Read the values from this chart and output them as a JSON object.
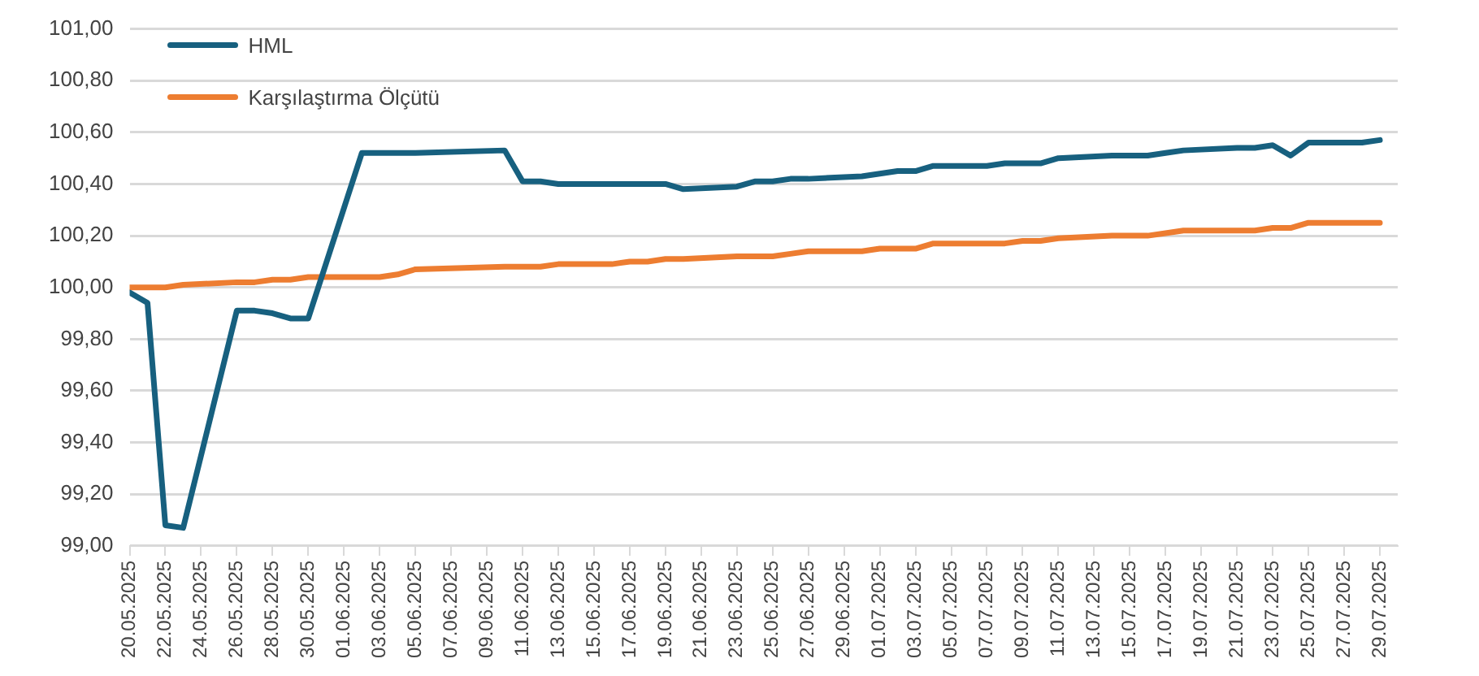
{
  "chart_data": {
    "type": "line",
    "x": [
      "2025-05-20",
      "2025-05-21",
      "2025-05-22",
      "2025-05-23",
      "2025-05-26",
      "2025-05-27",
      "2025-05-28",
      "2025-05-29",
      "2025-05-30",
      "2025-06-02",
      "2025-06-03",
      "2025-06-04",
      "2025-06-05",
      "2025-06-10",
      "2025-06-11",
      "2025-06-12",
      "2025-06-13",
      "2025-06-16",
      "2025-06-17",
      "2025-06-18",
      "2025-06-19",
      "2025-06-20",
      "2025-06-23",
      "2025-06-24",
      "2025-06-25",
      "2025-06-26",
      "2025-06-27",
      "2025-06-30",
      "2025-07-01",
      "2025-07-02",
      "2025-07-03",
      "2025-07-04",
      "2025-07-07",
      "2025-07-08",
      "2025-07-09",
      "2025-07-10",
      "2025-07-11",
      "2025-07-14",
      "2025-07-16",
      "2025-07-17",
      "2025-07-18",
      "2025-07-21",
      "2025-07-22",
      "2025-07-23",
      "2025-07-24",
      "2025-07-25",
      "2025-07-28",
      "2025-07-29"
    ],
    "series": [
      {
        "name": "HML",
        "color": "#17607f",
        "values": [
          99.98,
          99.94,
          99.08,
          99.07,
          99.91,
          99.91,
          99.9,
          99.88,
          99.88,
          100.52,
          100.52,
          100.52,
          100.52,
          100.53,
          100.41,
          100.41,
          100.4,
          100.4,
          100.4,
          100.4,
          100.4,
          100.38,
          100.39,
          100.41,
          100.41,
          100.42,
          100.42,
          100.43,
          100.44,
          100.45,
          100.45,
          100.47,
          100.47,
          100.48,
          100.48,
          100.48,
          100.5,
          100.51,
          100.51,
          100.52,
          100.53,
          100.54,
          100.54,
          100.55,
          100.51,
          100.56,
          100.56,
          100.57
        ]
      },
      {
        "name": "Karşılaştırma Ölçütü",
        "color": "#ed7d31",
        "values": [
          100.0,
          100.0,
          100.0,
          100.01,
          100.02,
          100.02,
          100.03,
          100.03,
          100.04,
          100.04,
          100.04,
          100.05,
          100.07,
          100.08,
          100.08,
          100.08,
          100.09,
          100.09,
          100.1,
          100.1,
          100.11,
          100.11,
          100.12,
          100.12,
          100.12,
          100.13,
          100.14,
          100.14,
          100.15,
          100.15,
          100.15,
          100.17,
          100.17,
          100.17,
          100.18,
          100.18,
          100.19,
          100.2,
          100.2,
          100.21,
          100.22,
          100.22,
          100.22,
          100.23,
          100.23,
          100.25,
          100.25,
          100.25
        ]
      }
    ],
    "xlim": [
      "2025-05-20",
      "2025-07-30"
    ],
    "xticks": [
      {
        "value": "2025-05-20",
        "label": "20.05.2025"
      },
      {
        "value": "2025-05-22",
        "label": "22.05.2025"
      },
      {
        "value": "2025-05-24",
        "label": "24.05.2025"
      },
      {
        "value": "2025-05-26",
        "label": "26.05.2025"
      },
      {
        "value": "2025-05-28",
        "label": "28.05.2025"
      },
      {
        "value": "2025-05-30",
        "label": "30.05.2025"
      },
      {
        "value": "2025-06-01",
        "label": "01.06.2025"
      },
      {
        "value": "2025-06-03",
        "label": "03.06.2025"
      },
      {
        "value": "2025-06-05",
        "label": "05.06.2025"
      },
      {
        "value": "2025-06-07",
        "label": "07.06.2025"
      },
      {
        "value": "2025-06-09",
        "label": "09.06.2025"
      },
      {
        "value": "2025-06-11",
        "label": "11.06.2025"
      },
      {
        "value": "2025-06-13",
        "label": "13.06.2025"
      },
      {
        "value": "2025-06-15",
        "label": "15.06.2025"
      },
      {
        "value": "2025-06-17",
        "label": "17.06.2025"
      },
      {
        "value": "2025-06-19",
        "label": "19.06.2025"
      },
      {
        "value": "2025-06-21",
        "label": "21.06.2025"
      },
      {
        "value": "2025-06-23",
        "label": "23.06.2025"
      },
      {
        "value": "2025-06-25",
        "label": "25.06.2025"
      },
      {
        "value": "2025-06-27",
        "label": "27.06.2025"
      },
      {
        "value": "2025-06-29",
        "label": "29.06.2025"
      },
      {
        "value": "2025-07-01",
        "label": "01.07.2025"
      },
      {
        "value": "2025-07-03",
        "label": "03.07.2025"
      },
      {
        "value": "2025-07-05",
        "label": "05.07.2025"
      },
      {
        "value": "2025-07-07",
        "label": "07.07.2025"
      },
      {
        "value": "2025-07-09",
        "label": "09.07.2025"
      },
      {
        "value": "2025-07-11",
        "label": "11.07.2025"
      },
      {
        "value": "2025-07-13",
        "label": "13.07.2025"
      },
      {
        "value": "2025-07-15",
        "label": "15.07.2025"
      },
      {
        "value": "2025-07-17",
        "label": "17.07.2025"
      },
      {
        "value": "2025-07-19",
        "label": "19.07.2025"
      },
      {
        "value": "2025-07-21",
        "label": "21.07.2025"
      },
      {
        "value": "2025-07-23",
        "label": "23.07.2025"
      },
      {
        "value": "2025-07-25",
        "label": "25.07.2025"
      },
      {
        "value": "2025-07-27",
        "label": "27.07.2025"
      },
      {
        "value": "2025-07-29",
        "label": "29.07.2025"
      }
    ],
    "ylim": [
      99,
      101
    ],
    "yticks": [
      {
        "value": 99,
        "label": "99,00"
      },
      {
        "value": 99.2,
        "label": "99,20"
      },
      {
        "value": 99.4,
        "label": "99,40"
      },
      {
        "value": 99.6,
        "label": "99,60"
      },
      {
        "value": 99.8,
        "label": "99,80"
      },
      {
        "value": 100,
        "label": "100,00"
      },
      {
        "value": 100.2,
        "label": "100,20"
      },
      {
        "value": 100.4,
        "label": "100,40"
      },
      {
        "value": 100.6,
        "label": "100,60"
      },
      {
        "value": 100.8,
        "label": "100,80"
      },
      {
        "value": 101,
        "label": "101,00"
      }
    ],
    "grid": "y",
    "legend": "top left",
    "marker": "none",
    "line_style": "solid"
  }
}
